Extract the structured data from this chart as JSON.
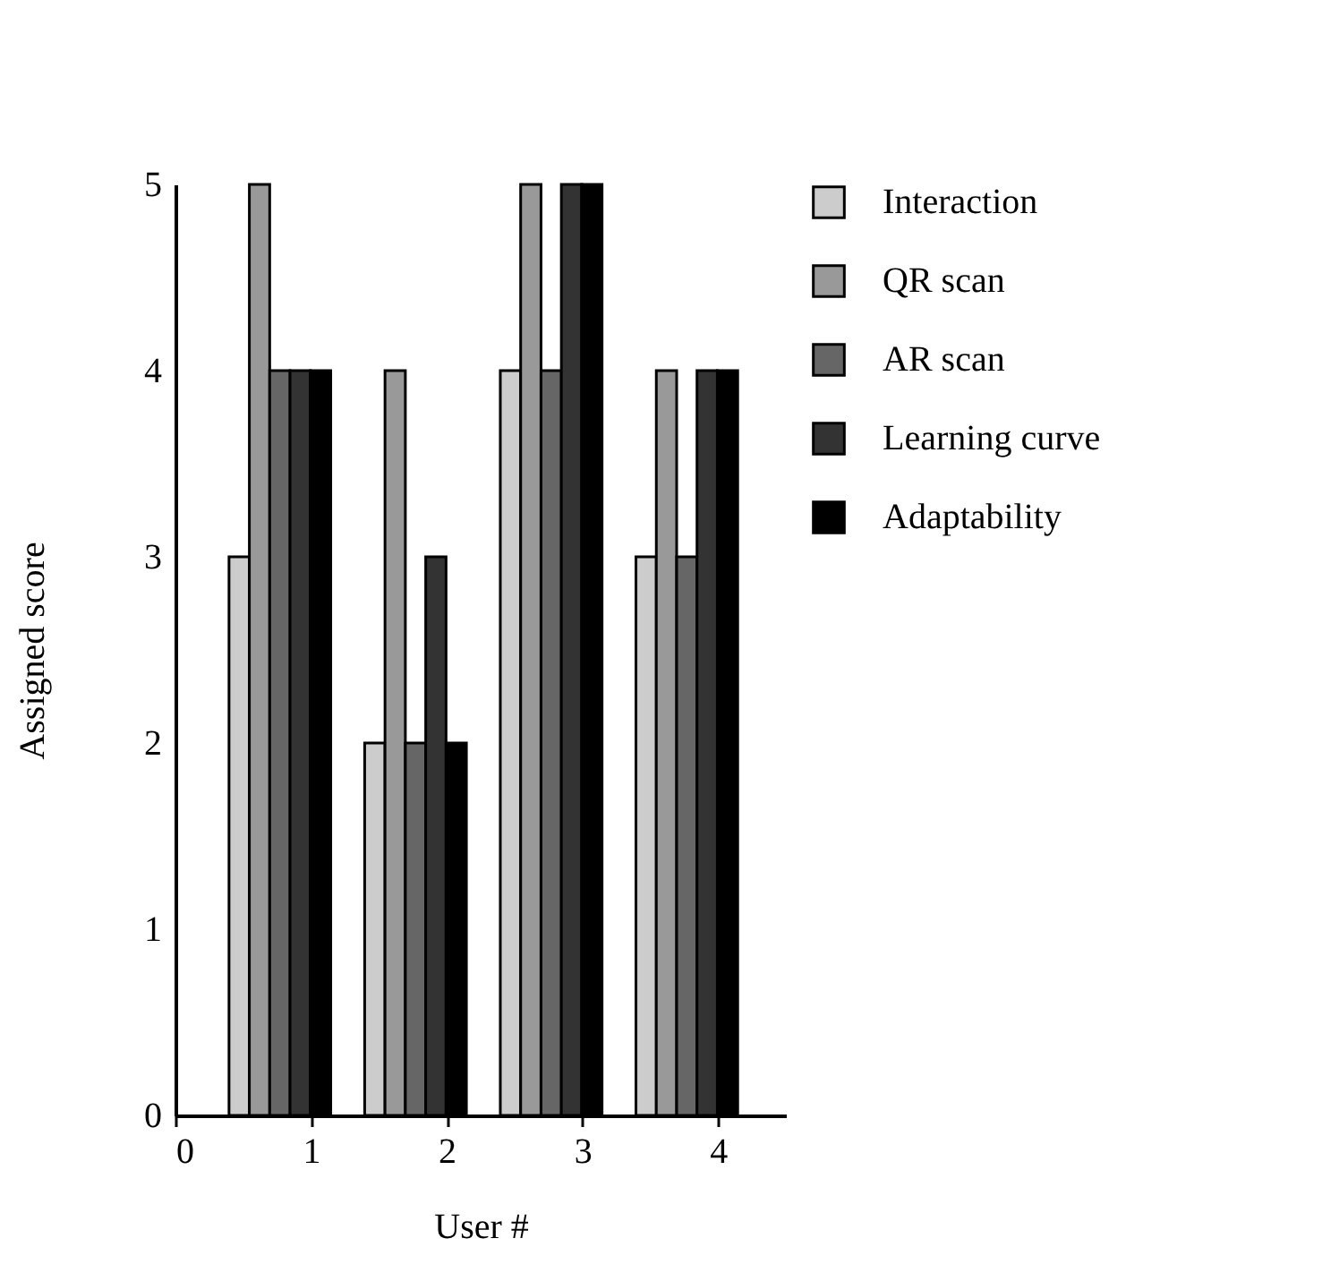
{
  "chart_data": {
    "type": "bar",
    "xlabel": "User #",
    "ylabel": "Assigned score",
    "series": [
      {
        "name": "Interaction",
        "color": "#cccccc",
        "x": [
          0.47,
          1.47,
          2.47,
          3.47
        ],
        "values": [
          3,
          2,
          4,
          3
        ]
      },
      {
        "name": "QR scan",
        "color": "#999999",
        "x": [
          0.62,
          1.62,
          2.62,
          3.62
        ],
        "values": [
          5,
          4,
          5,
          4
        ]
      },
      {
        "name": "AR scan",
        "color": "#666666",
        "x": [
          0.77,
          1.77,
          2.77,
          3.77
        ],
        "values": [
          4,
          2,
          4,
          3
        ]
      },
      {
        "name": "Learning curve",
        "color": "#333333",
        "x": [
          0.92,
          1.92,
          2.92,
          3.92
        ],
        "values": [
          4,
          3,
          5,
          4
        ]
      },
      {
        "name": "Adaptability",
        "color": "#000000",
        "x": [
          1.07,
          2.07,
          3.07,
          4.07
        ],
        "values": [
          4,
          2,
          5,
          4
        ]
      }
    ],
    "xlim": [
      0,
      4.5
    ],
    "xticks": [
      0,
      1,
      2,
      3,
      4
    ],
    "ylim": [
      0,
      5
    ],
    "yticks": [
      0,
      1,
      2,
      3,
      4,
      5
    ],
    "legend": "right"
  }
}
